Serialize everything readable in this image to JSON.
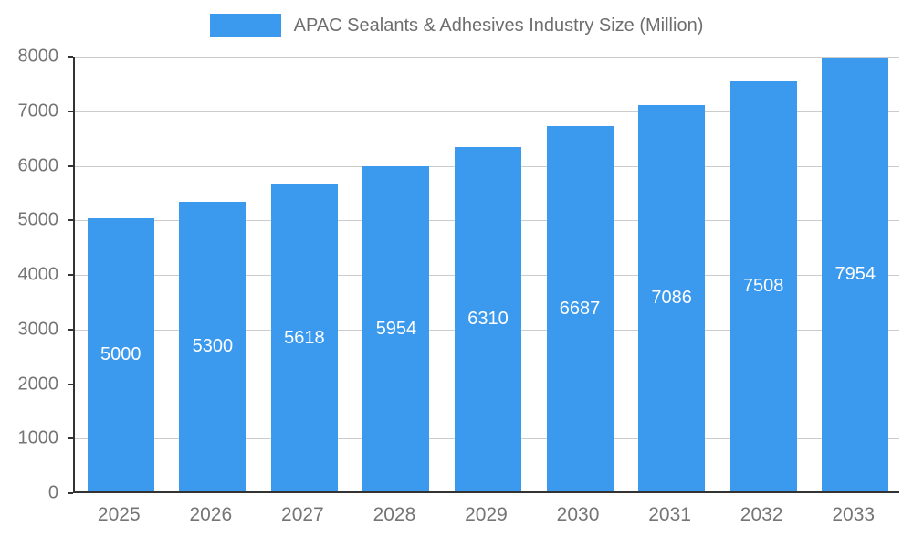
{
  "chart_data": {
    "type": "bar",
    "title": "APAC Sealants & Adhesives Industry Size (Million)",
    "categories": [
      "2025",
      "2026",
      "2027",
      "2028",
      "2029",
      "2030",
      "2031",
      "2032",
      "2033"
    ],
    "values": [
      5000,
      5300,
      5618,
      5954,
      6310,
      6687,
      7086,
      7508,
      7954
    ],
    "xlabel": "",
    "ylabel": "",
    "ylim": [
      0,
      8000
    ],
    "yticks": [
      0,
      1000,
      2000,
      3000,
      4000,
      5000,
      6000,
      7000,
      8000
    ],
    "grid": true,
    "legend_position": "top",
    "bar_color": "#3B99EE",
    "bar_label_color": "#ffffff",
    "axis_text_color": "#757575",
    "gridline_color": "#cccccc",
    "axis_line_color": "#333333"
  }
}
